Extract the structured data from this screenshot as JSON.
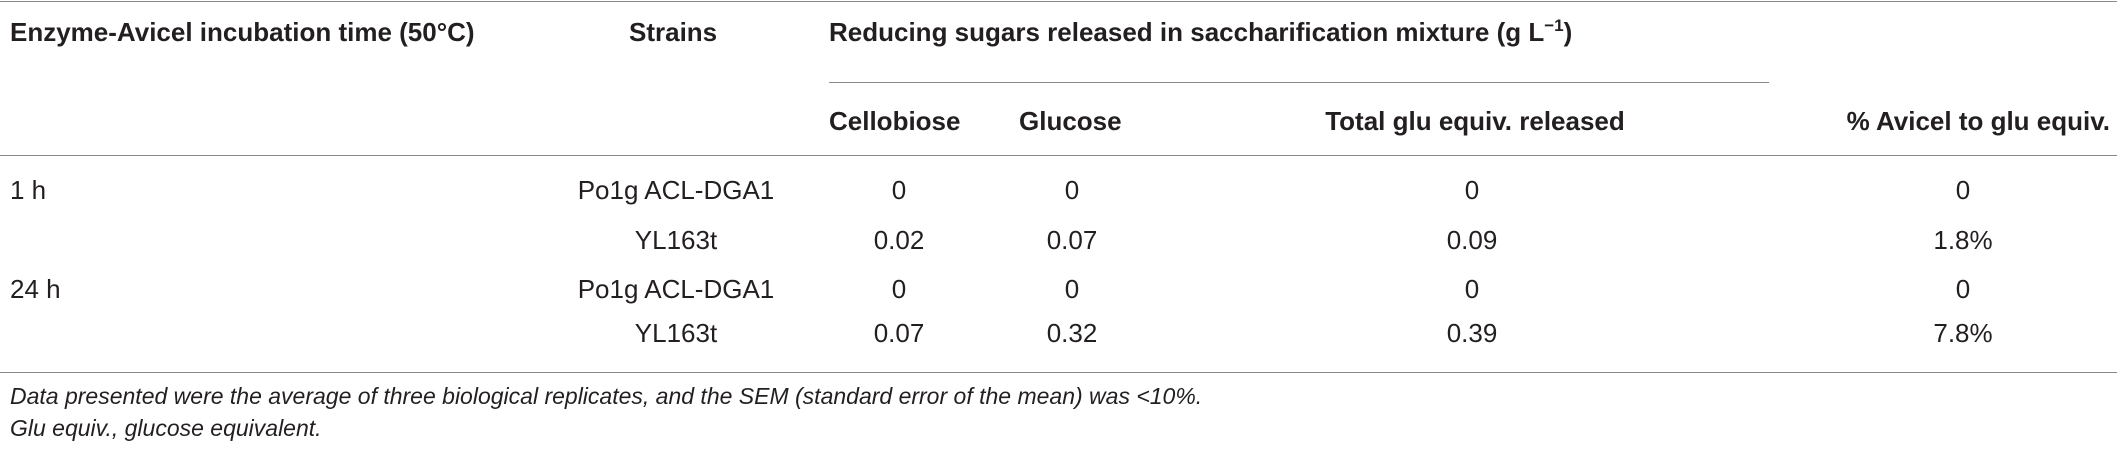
{
  "table": {
    "headers": {
      "incubation_time": "Enzyme-Avicel incubation time (50°C)",
      "strains": "Strains",
      "reducing_sugars_prefix": "Reducing sugars released in saccharification mixture (g L",
      "reducing_sugars_sup": "−1",
      "reducing_sugars_suffix": ")",
      "cellobiose": "Cellobiose",
      "glucose": "Glucose",
      "total_glu": "Total glu equiv. released",
      "pct_avicel": "% Avicel to glu equiv."
    },
    "rows": [
      {
        "time": "1 h",
        "strain": "Po1g ACL-DGA1",
        "cellobiose": "0",
        "glucose": "0",
        "total": "0",
        "pct": "0"
      },
      {
        "time": "",
        "strain": "YL163t",
        "cellobiose": "0.02",
        "glucose": "0.07",
        "total": "0.09",
        "pct": "1.8%"
      },
      {
        "time": "24 h",
        "strain": "Po1g ACL-DGA1",
        "cellobiose": "0",
        "glucose": "0",
        "total": "0",
        "pct": "0"
      },
      {
        "time": "",
        "strain": "YL163t",
        "cellobiose": "0.07",
        "glucose": "0.32",
        "total": "0.39",
        "pct": "7.8%"
      }
    ]
  },
  "footnotes": [
    "Data presented were the average of three biological replicates, and the SEM (standard error of the mean) was <10%.",
    "Glu equiv., glucose equivalent."
  ]
}
